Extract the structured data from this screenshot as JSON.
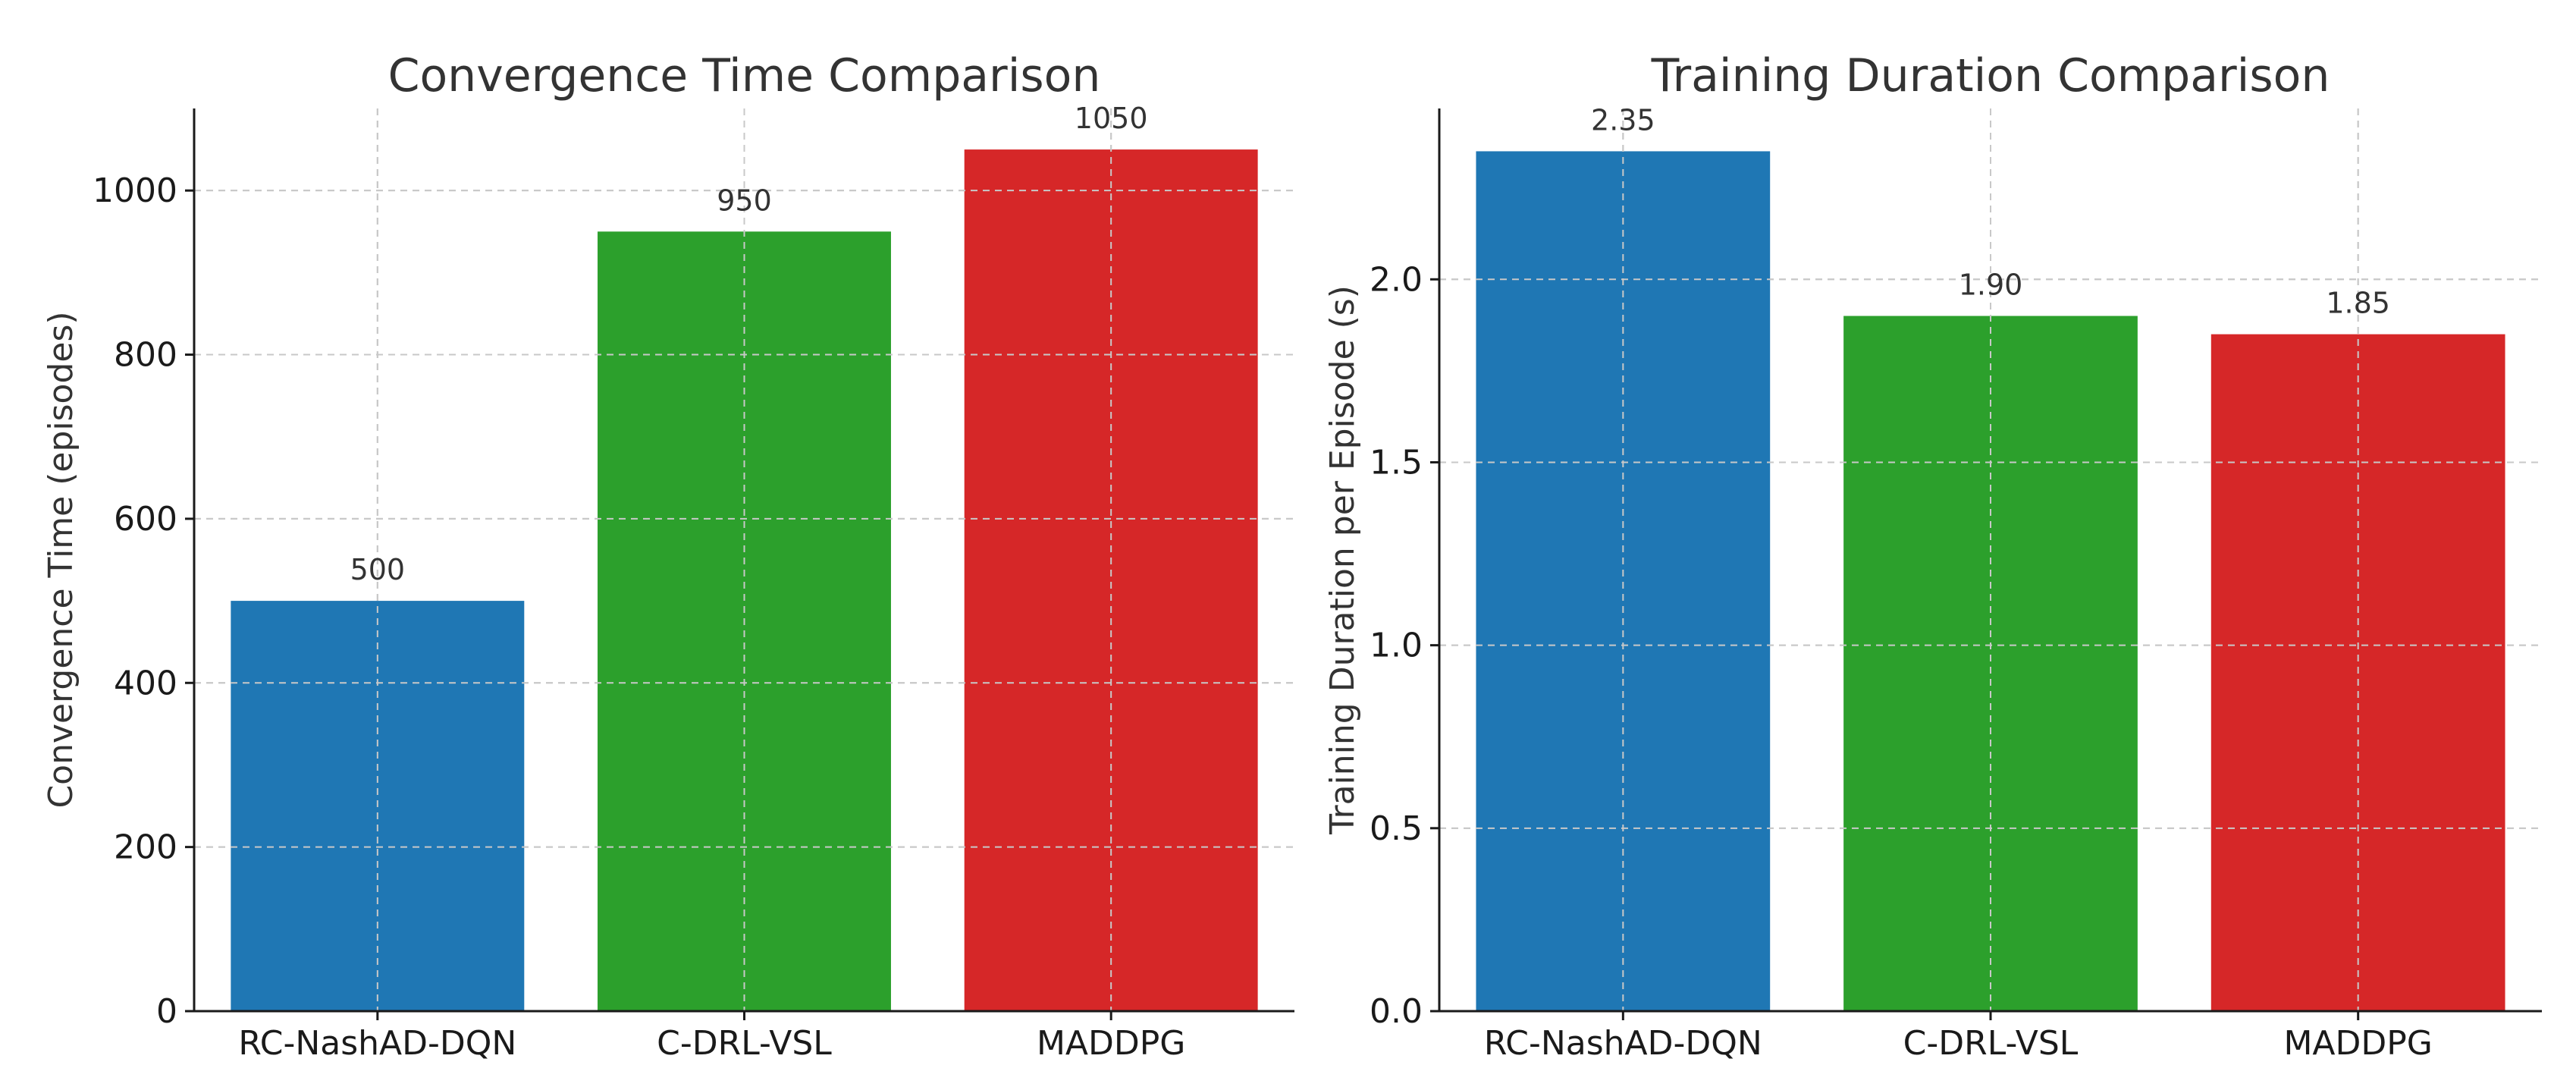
{
  "chart_data": [
    {
      "type": "bar",
      "title": "Convergence Time Comparison",
      "xlabel": "",
      "ylabel": "Convergence Time (episodes)",
      "categories": [
        "RC-NashAD-DQN",
        "C-DRL-VSL",
        "MADDPG"
      ],
      "values": [
        500,
        950,
        1050
      ],
      "value_labels": [
        "500",
        "950",
        "1050"
      ],
      "colors": [
        "#1f77b4",
        "#2ca02c",
        "#d62728"
      ],
      "ylim": [
        0,
        1100
      ],
      "yticks": [
        0,
        200,
        400,
        600,
        800,
        1000
      ],
      "ytick_labels": [
        "0",
        "200",
        "400",
        "600",
        "800",
        "1000"
      ],
      "grid": true
    },
    {
      "type": "bar",
      "title": "Training Duration Comparison",
      "xlabel": "",
      "ylabel": "Training Duration per Episode (s)",
      "categories": [
        "RC-NashAD-DQN",
        "C-DRL-VSL",
        "MADDPG"
      ],
      "values": [
        2.35,
        1.9,
        1.85
      ],
      "value_labels": [
        "2.35",
        "1.90",
        "1.85"
      ],
      "colors": [
        "#1f77b4",
        "#2ca02c",
        "#d62728"
      ],
      "ylim": [
        0,
        2.467
      ],
      "yticks": [
        0.0,
        0.5,
        1.0,
        1.5,
        2.0
      ],
      "ytick_labels": [
        "0.0",
        "0.5",
        "1.0",
        "1.5",
        "2.0"
      ],
      "grid": true
    }
  ]
}
